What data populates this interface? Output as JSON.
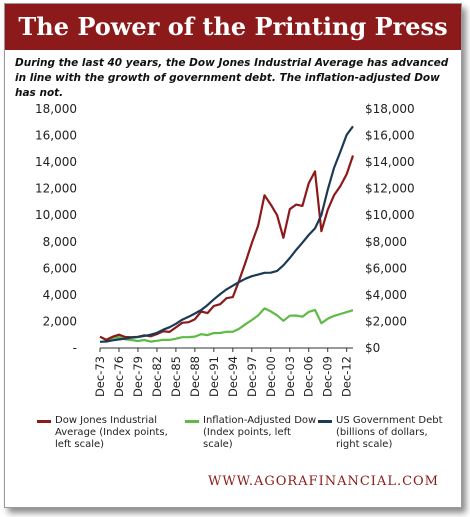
{
  "header": {
    "title": "The Power of the Printing Press",
    "subtitle": "During the last 40 years, the Dow Jones Industrial Average has advanced in line with the growth of government debt. The inflation-adjusted Dow has not."
  },
  "footer": {
    "url": "WWW.AGORAFINANCIAL.COM"
  },
  "colors": {
    "title_bar": "#8c1a1b",
    "dow": "#8c1a1b",
    "inflation": "#5dbb46",
    "debt": "#1b3a55"
  },
  "chart_data": {
    "type": "line",
    "title": "The Power of the Printing Press",
    "x_labels": [
      "Dec-73",
      "Dec-76",
      "Dec-79",
      "Dec-82",
      "Dec-85",
      "Dec-88",
      "Dec-91",
      "Dec-94",
      "Dec-97",
      "Dec-00",
      "Dec-03",
      "Dec-06",
      "Dec-09",
      "Dec-12"
    ],
    "x_start_year": 1973,
    "x_end_year": 2013,
    "y_left": {
      "ticks": [
        "18,000",
        "16,000",
        "14,000",
        "12,000",
        "10,000",
        "8,000",
        "6,000",
        "4,000",
        "2,000",
        "-"
      ],
      "ylim": [
        0,
        18000
      ]
    },
    "y_right": {
      "ticks": [
        "$18,000",
        "$16,000",
        "$14,000",
        "$12,000",
        "$10,000",
        "$8,000",
        "$6,000",
        "$4,000",
        "$2,000",
        "$0"
      ],
      "ylim": [
        0,
        18000
      ]
    },
    "grid": false,
    "legend_position": "bottom",
    "series": [
      {
        "name": "Dow Jones Industrial Average (Index points, left scale)",
        "axis": "left",
        "x": [
          1973,
          1974,
          1975,
          1976,
          1977,
          1978,
          1979,
          1980,
          1981,
          1982,
          1983,
          1984,
          1985,
          1986,
          1987,
          1988,
          1989,
          1990,
          1991,
          1992,
          1993,
          1994,
          1995,
          1996,
          1997,
          1998,
          1999,
          2000,
          2001,
          2002,
          2003,
          2004,
          2005,
          2006,
          2007,
          2008,
          2009,
          2010,
          2011,
          2012,
          2013
        ],
        "y": [
          850,
          620,
          850,
          1000,
          830,
          810,
          840,
          960,
          880,
          1050,
          1260,
          1210,
          1550,
          1900,
          1940,
          2170,
          2750,
          2630,
          3170,
          3300,
          3750,
          3830,
          5100,
          6450,
          7900,
          9200,
          11500,
          10800,
          10000,
          8300,
          10450,
          10800,
          10700,
          12400,
          13300,
          8800,
          10400,
          11500,
          12200,
          13100,
          14500
        ]
      },
      {
        "name": "Inflation-Adjusted Dow (Index points, left scale)",
        "axis": "left",
        "x": [
          1973,
          1974,
          1975,
          1976,
          1977,
          1978,
          1979,
          1980,
          1981,
          1982,
          1983,
          1984,
          1985,
          1986,
          1987,
          1988,
          1989,
          1990,
          1991,
          1992,
          1993,
          1994,
          1995,
          1996,
          1997,
          1998,
          1999,
          2000,
          2001,
          2002,
          2003,
          2004,
          2005,
          2006,
          2007,
          2008,
          2009,
          2010,
          2011,
          2012,
          2013
        ],
        "y": [
          850,
          600,
          760,
          820,
          650,
          600,
          530,
          600,
          480,
          540,
          620,
          610,
          700,
          810,
          820,
          860,
          1040,
          970,
          1120,
          1130,
          1230,
          1220,
          1450,
          1790,
          2110,
          2450,
          2980,
          2760,
          2460,
          2050,
          2430,
          2450,
          2360,
          2720,
          2870,
          1870,
          2200,
          2420,
          2560,
          2700,
          2850
        ]
      },
      {
        "name": "US Government Debt (billions of dollars, right scale)",
        "axis": "right",
        "x": [
          1973,
          1974,
          1975,
          1976,
          1977,
          1978,
          1979,
          1980,
          1981,
          1982,
          1983,
          1984,
          1985,
          1986,
          1987,
          1988,
          1989,
          1990,
          1991,
          1992,
          1993,
          1994,
          1995,
          1996,
          1997,
          1998,
          1999,
          2000,
          2001,
          2002,
          2003,
          2004,
          2005,
          2006,
          2007,
          2008,
          2009,
          2010,
          2011,
          2012,
          2013
        ],
        "y": [
          470,
          490,
          580,
          650,
          710,
          780,
          830,
          910,
          1000,
          1140,
          1380,
          1570,
          1820,
          2130,
          2350,
          2600,
          2860,
          3230,
          3670,
          4060,
          4410,
          4690,
          4970,
          5220,
          5410,
          5530,
          5660,
          5670,
          5810,
          6230,
          6780,
          7380,
          7930,
          8510,
          9010,
          10020,
          11910,
          13560,
          14790,
          16060,
          16700
        ]
      }
    ]
  }
}
